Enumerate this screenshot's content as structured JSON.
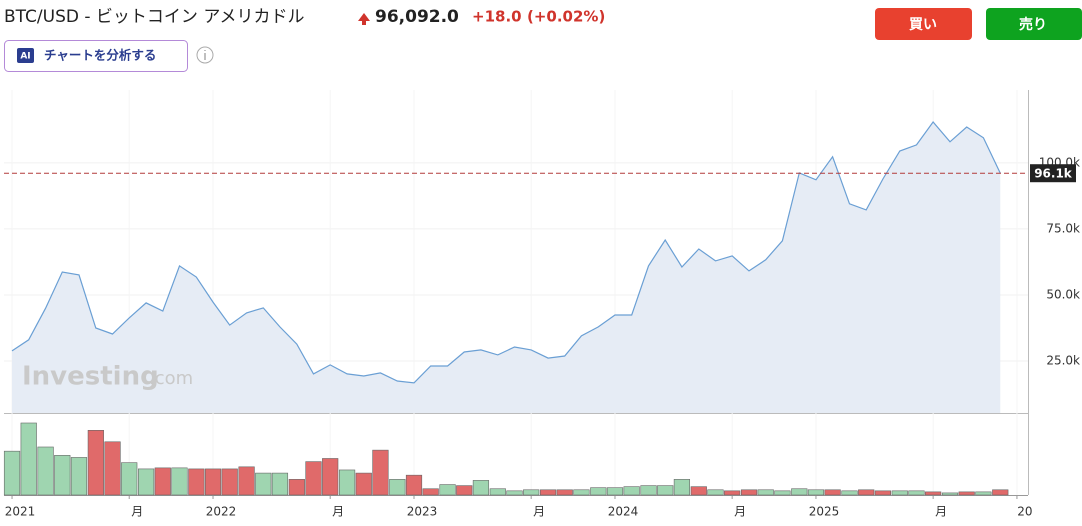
{
  "header": {
    "title": "BTC/USD - ビットコイン アメリカドル",
    "price": "96,092.0",
    "change": "+18.0",
    "change_pct": "(+0.02%)"
  },
  "buttons": {
    "buy": "買い",
    "sell": "売り"
  },
  "ai_button": {
    "icon": "AI",
    "label": "チャートを分析する"
  },
  "chart_data": {
    "type": "area",
    "watermark": "Investing",
    "watermark_suffix": ".com",
    "color": "#6a9fd4",
    "fill": "#e6ecf5",
    "x": [
      2021,
      2021.083,
      2021.167,
      2021.25,
      2021.333,
      2021.417,
      2021.5,
      2021.583,
      2021.667,
      2021.75,
      2021.833,
      2021.917,
      2022,
      2022.083,
      2022.167,
      2022.25,
      2022.333,
      2022.417,
      2022.5,
      2022.583,
      2022.667,
      2022.75,
      2022.833,
      2022.917,
      2023,
      2023.083,
      2023.167,
      2023.25,
      2023.333,
      2023.417,
      2023.5,
      2023.583,
      2023.667,
      2023.75,
      2023.833,
      2023.917,
      2024,
      2024.083,
      2024.167,
      2024.25,
      2024.333,
      2024.417,
      2024.5,
      2024.583,
      2024.667,
      2024.75,
      2024.833,
      2024.917,
      2025,
      2025.083,
      2025.167,
      2025.25,
      2025.333,
      2025.417,
      2025.5,
      2025.583,
      2025.667,
      2025.75,
      2025.833,
      2025.917
    ],
    "values": [
      28800,
      33000,
      45000,
      58700,
      57600,
      37500,
      35200,
      41300,
      47000,
      43900,
      61000,
      56800,
      47300,
      38600,
      43200,
      45100,
      37900,
      31400,
      20100,
      23500,
      20100,
      19300,
      20500,
      17400,
      16700,
      23100,
      23100,
      28400,
      29200,
      27300,
      30300,
      29200,
      26100,
      26900,
      34500,
      37900,
      42400,
      42400,
      61000,
      70800,
      60600,
      67400,
      62900,
      64800,
      59100,
      63300,
      70500,
      96200,
      93600,
      102300,
      84500,
      82200,
      93900,
      104500,
      106800,
      115500,
      108000,
      113600,
      109500,
      96092
    ],
    "xlim": [
      2020.96,
      2026.055
    ],
    "xticks": [
      2021,
      {
        "value": 2021.583,
        "label": "月"
      },
      2022,
      {
        "value": 2022.583,
        "label": "月"
      },
      2023,
      {
        "value": 2023.583,
        "label": "月"
      },
      2024,
      {
        "value": 2024.583,
        "label": "月"
      },
      2025,
      {
        "value": 2025.583,
        "label": "月"
      },
      {
        "value": 2026,
        "label": "20"
      }
    ],
    "ylim": [
      5300,
      127600
    ],
    "yticks": [
      {
        "value": 25000,
        "label": "25.0k"
      },
      {
        "value": 50000,
        "label": "50.0k"
      },
      {
        "value": 75000,
        "label": "75.0k"
      },
      {
        "value": 100000,
        "label": "100.0k"
      }
    ],
    "grid": true,
    "current": {
      "value": 96092,
      "label": "96.1k",
      "color": "#b23a3a"
    },
    "volume": {
      "values": [
        42,
        69,
        46,
        38,
        36,
        62,
        51,
        31,
        25,
        26,
        26,
        25,
        25,
        25,
        27,
        21,
        21,
        15,
        32,
        35,
        24,
        21,
        43,
        15,
        19,
        6,
        10,
        9,
        14,
        6,
        4,
        5,
        5,
        5,
        5,
        7,
        7,
        8,
        9,
        9,
        15,
        8,
        5,
        4,
        5,
        5,
        4,
        6,
        5,
        5,
        4,
        5,
        4,
        4,
        4,
        3,
        2,
        3,
        3,
        5
      ],
      "colors": [
        "#9fd5b0",
        "#9fd5b0",
        "#9fd5b0",
        "#9fd5b0",
        "#9fd5b0",
        "#e06a6a",
        "#e06a6a",
        "#9fd5b0",
        "#9fd5b0",
        "#e06a6a",
        "#9fd5b0",
        "#e06a6a",
        "#e06a6a",
        "#e06a6a",
        "#e06a6a",
        "#9fd5b0",
        "#9fd5b0",
        "#e06a6a",
        "#e06a6a",
        "#e06a6a",
        "#9fd5b0",
        "#e06a6a",
        "#e06a6a",
        "#9fd5b0",
        "#e06a6a",
        "#e06a6a",
        "#9fd5b0",
        "#e06a6a",
        "#9fd5b0",
        "#9fd5b0",
        "#9fd5b0",
        "#9fd5b0",
        "#e06a6a",
        "#e06a6a",
        "#9fd5b0",
        "#9fd5b0",
        "#9fd5b0",
        "#9fd5b0",
        "#9fd5b0",
        "#9fd5b0",
        "#9fd5b0",
        "#e06a6a",
        "#9fd5b0",
        "#e06a6a",
        "#e06a6a",
        "#9fd5b0",
        "#9fd5b0",
        "#9fd5b0",
        "#9fd5b0",
        "#e06a6a",
        "#9fd5b0",
        "#e06a6a",
        "#e06a6a",
        "#9fd5b0",
        "#9fd5b0",
        "#e06a6a",
        "#9fd5b0",
        "#e06a6a",
        "#9fd5b0",
        "#e06a6a"
      ]
    }
  }
}
